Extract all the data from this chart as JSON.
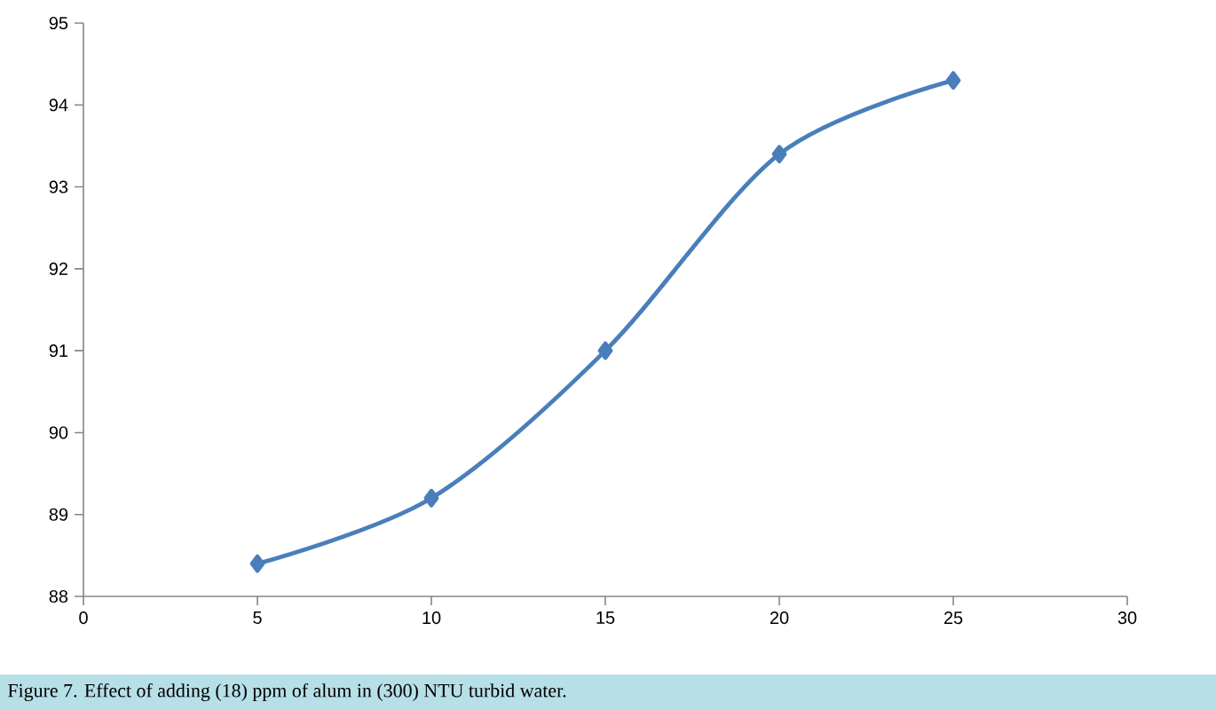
{
  "chart_data": {
    "type": "line",
    "x": [
      5,
      10,
      15,
      20,
      25
    ],
    "series": [
      {
        "color": "#4a7ebb",
        "values": [
          88.4,
          89.2,
          91.0,
          93.4,
          94.3
        ]
      }
    ],
    "xlim": [
      0,
      30
    ],
    "xticks": [
      0,
      5,
      10,
      15,
      20,
      25,
      30
    ],
    "ylim": [
      88,
      95
    ],
    "yticks": [
      88,
      89,
      90,
      91,
      92,
      93,
      94,
      95
    ],
    "marker": "diamond",
    "grid": false,
    "annotations": [
      "Figure 7. Effect of adding (18) ppm of alum in (300) NTU turbid water."
    ]
  }
}
